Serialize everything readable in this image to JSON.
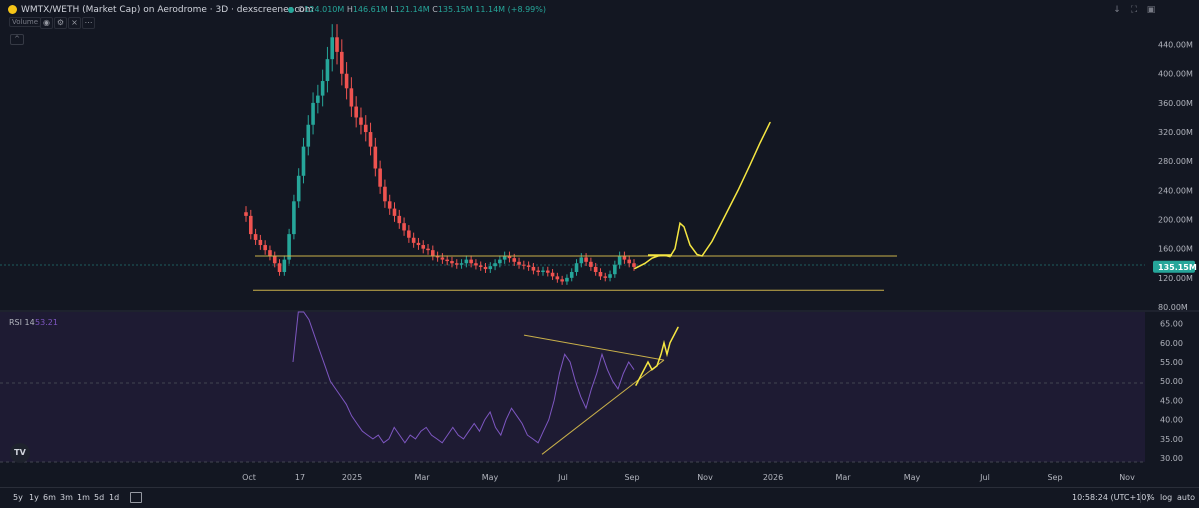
{
  "header": {
    "title": "WMTX/WETH (Market Cap) on Aerodrome · 3D · dexscreener.com",
    "ohlc": [
      {
        "key": "O",
        "value": "124.010M"
      },
      {
        "key": "H",
        "value": "146.61M"
      },
      {
        "key": "L",
        "value": "121.14M"
      },
      {
        "key": "C",
        "value": "135.15M"
      },
      {
        "key": "",
        "value": "11.14M (+8.99%)"
      }
    ],
    "volume_label": "Volume",
    "window_icons": [
      "arrow-down-icon",
      "fullscreen-icon",
      "screenshot-icon"
    ]
  },
  "colors": {
    "background": "#131722",
    "up": "#26a69a",
    "down": "#ef5350",
    "rsi_line": "#7e57c2",
    "rsi_band": "#1e1b33",
    "drawing": "#f5e642",
    "trendline": "#c9b04a",
    "price_badge": "#26a69a"
  },
  "chart_data": [
    {
      "type": "candlestick",
      "title": "",
      "y_axis_ticks": [
        "440.00M",
        "400.00M",
        "360.00M",
        "320.00M",
        "280.00M",
        "240.00M",
        "200.00M",
        "160.00M",
        "120.00M",
        "80.00M"
      ],
      "ylim": [
        80,
        460
      ],
      "y_unit": "M",
      "last_price": "135.15M",
      "x_axis_ticks": [
        "Oct",
        "17",
        "2025",
        "Mar",
        "May",
        "Jul",
        "Sep",
        "Nov",
        "2026",
        "Mar",
        "May",
        "Jul",
        "Sep",
        "Nov"
      ],
      "candles_approx_close_M": [
        205,
        180,
        172,
        165,
        158,
        150,
        140,
        128,
        145,
        180,
        225,
        260,
        300,
        330,
        360,
        370,
        390,
        420,
        450,
        430,
        400,
        380,
        355,
        340,
        330,
        320,
        300,
        270,
        245,
        225,
        215,
        205,
        195,
        185,
        175,
        168,
        165,
        160,
        158,
        150,
        148,
        145,
        143,
        140,
        138,
        140,
        145,
        140,
        137,
        135,
        132,
        136,
        140,
        145,
        150,
        147,
        142,
        138,
        137,
        135,
        130,
        128,
        130,
        127,
        122,
        118,
        115,
        120,
        128,
        140,
        148,
        142,
        135,
        128,
        122,
        120,
        125,
        138,
        150,
        145,
        140,
        135
      ],
      "horizontal_lines_M": [
        150,
        103
      ],
      "projection_drawing": "hand-drawn yellow path: rises from last candle near 135M to ~150M, spike to ~200M, dips to ~150M, then climbs to ~335M"
    },
    {
      "type": "line",
      "title": "RSI 14",
      "current_value": "53.21",
      "y_axis_ticks": [
        "65.00",
        "60.00",
        "55.00",
        "50.00",
        "45.00",
        "40.00",
        "35.00",
        "30.00"
      ],
      "ylim": [
        29,
        68
      ],
      "approx_values": [
        55,
        68,
        68,
        66,
        62,
        58,
        54,
        50,
        48,
        46,
        44,
        41,
        39,
        37,
        36,
        35,
        36,
        34,
        35,
        38,
        36,
        34,
        36,
        35,
        37,
        38,
        36,
        35,
        34,
        36,
        38,
        36,
        35,
        37,
        39,
        37,
        40,
        42,
        38,
        36,
        40,
        43,
        41,
        39,
        36,
        35,
        34,
        37,
        40,
        45,
        52,
        57,
        55,
        50,
        46,
        43,
        48,
        52,
        57,
        53,
        50,
        48,
        52,
        55,
        53
      ],
      "reference_lines": [
        70,
        50,
        30
      ],
      "trendlines": "descending line from ~62 to ~56, ascending line from ~32 to ~56 (triangle)",
      "projection_drawing": "hand-drawn yellow path rising from ~50 to ~63"
    }
  ],
  "footer": {
    "ranges": [
      "5y",
      "1y",
      "6m",
      "3m",
      "1m",
      "5d",
      "1d"
    ],
    "clock": "10:58:24 (UTC+10)",
    "scale_options": [
      "%",
      "log",
      "auto"
    ]
  }
}
